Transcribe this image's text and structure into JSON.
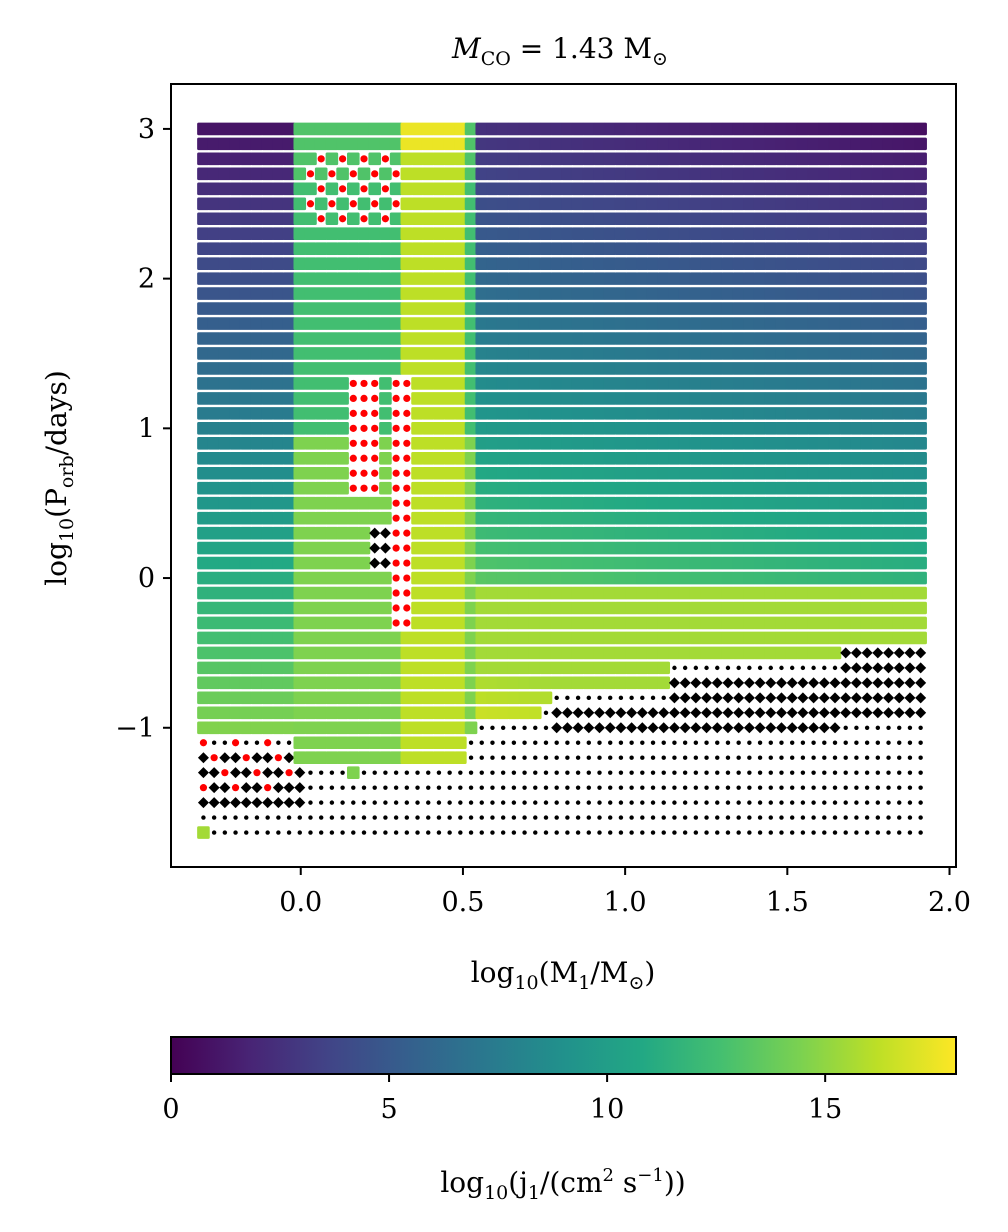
{
  "chart_data": {
    "type": "scatter",
    "title": "M_CO = 1.43 M_⊙",
    "title_parts": {
      "main": "M",
      "sub": "CO",
      "rest": " = 1.43 M",
      "sun_sub": "⊙"
    },
    "xlabel": "log10(M1/M⊙)",
    "xlabel_parts": {
      "fn": "log",
      "fn_sub": "10",
      "open": "(M",
      "var_sub": "1",
      "mid": "/M",
      "sun_sub": "⊙",
      "close": ")"
    },
    "ylabel": "log10(Porb/days)",
    "ylabel_parts": {
      "fn": "log",
      "fn_sub": "10",
      "open": "(P",
      "var_sub": "orb",
      "rest": "/days)"
    },
    "xlim": [
      -0.4,
      2.02
    ],
    "ylim": [
      -1.93,
      3.3
    ],
    "xticks": [
      0.0,
      0.5,
      1.0,
      1.5,
      2.0
    ],
    "xtick_labels": [
      "0.0",
      "0.5",
      "1.0",
      "1.5",
      "2.0"
    ],
    "yticks": [
      -1,
      0,
      1,
      2,
      3
    ],
    "ytick_labels": [
      "−1",
      "0",
      "1",
      "2",
      "3"
    ],
    "grid": false,
    "colorbar": {
      "colormap": "viridis",
      "range": [
        0,
        18
      ],
      "ticks": [
        0,
        5,
        10,
        15
      ],
      "tick_labels": [
        "0",
        "5",
        "10",
        "15"
      ],
      "label": "log10(j1/(cm2 s−1))",
      "label_parts": {
        "fn": "log",
        "fn_sub": "10",
        "open": "(j",
        "var_sub": "1",
        "mid": "/(cm",
        "sup1": "2",
        "mid2": " s",
        "sup2": "−1",
        "close": "))"
      },
      "placement": "bottom"
    },
    "grid_layout": {
      "x_start": -0.3,
      "x_step": 0.033,
      "n_cols": 68,
      "y_start": -1.7,
      "y_step": 0.1,
      "n_rows": 48
    },
    "markers": {
      "square": "outcome with log10(j1) value (color)",
      "red_dot": "red point marker",
      "black_diamond": "black diamond marker",
      "black_dot": "small black point marker"
    },
    "colors": {
      "red": "#ff0000",
      "black": "#000000"
    }
  }
}
